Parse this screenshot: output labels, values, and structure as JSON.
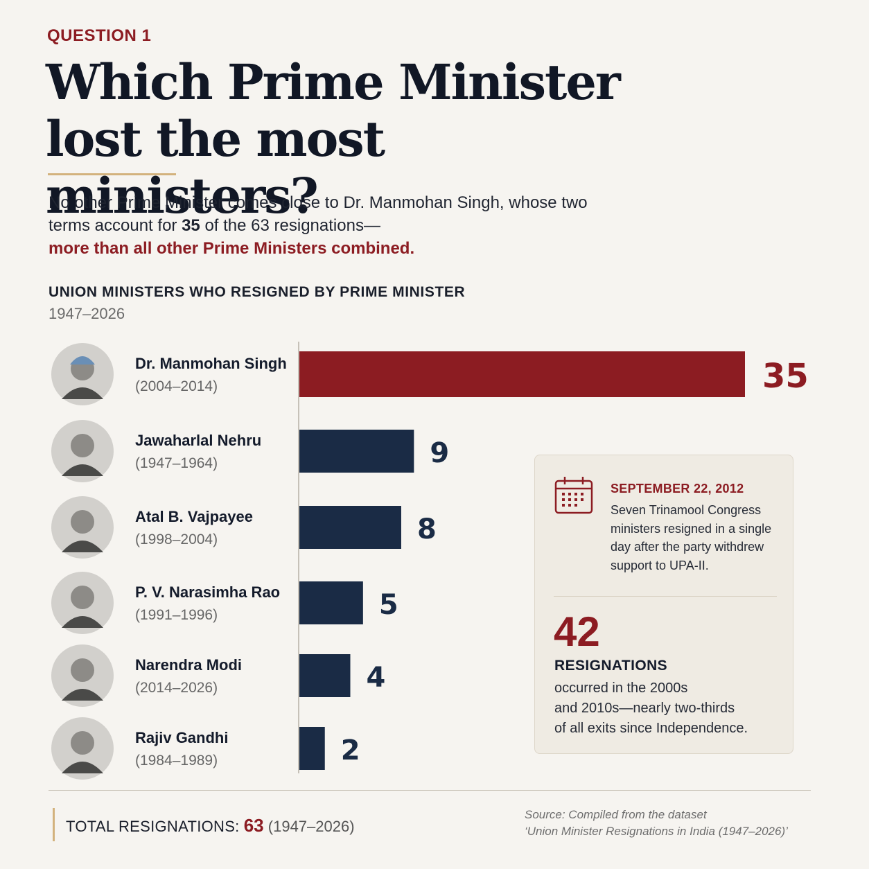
{
  "header": {
    "kicker": "QUESTION 1",
    "headline_line1": "Which Prime Minister",
    "headline_line2": "lost the most ministers?"
  },
  "intro": {
    "text1": "No other Prime Minister comes close to Dr. Manmohan Singh, whose two terms account for ",
    "highlight_number": "35",
    "text2": " of the 63 resignations—",
    "accent": "more than all other Prime Ministers combined."
  },
  "chart_data": {
    "type": "bar",
    "orientation": "horizontal",
    "title": "UNION MINISTERS WHO RESIGNED BY PRIME MINISTER",
    "subtitle": "1947–2026",
    "categories": [
      "Dr. Manmohan Singh",
      "Jawaharlal Nehru",
      "Atal B. Vajpayee",
      "P. V. Narasimha Rao",
      "Narendra Modi",
      "Rajiv Gandhi"
    ],
    "terms": [
      "(2004–2014)",
      "(1947–1964)",
      "(1998–2004)",
      "(1991–1996)",
      "(2014–2026)",
      "(1984–1989)"
    ],
    "values": [
      35,
      9,
      8,
      5,
      4,
      2
    ],
    "colors": {
      "highlight": "#8c1c22",
      "default": "#1a2b45"
    },
    "highlight_index": 0,
    "xlim": [
      0,
      35
    ],
    "grid": false,
    "legend": "none"
  },
  "callout": {
    "icon": "calendar-icon",
    "date": "SEPTEMBER 22, 2012",
    "text_lines": [
      "Seven Trinamool Congress",
      "ministers resigned in a single",
      "day after the party withdrew",
      "support to UPA-II."
    ],
    "big_number": "42",
    "label": "RESIGNATIONS",
    "body_lines": [
      "occurred in the 2000s",
      "and 2010s—nearly two-thirds",
      "of all exits since Independence."
    ]
  },
  "footer": {
    "total_label": "TOTAL RESIGNATIONS:",
    "total_value": "63",
    "total_years": "(1947–2026)",
    "source_line1": "Source: Compiled from the dataset",
    "source_line2": "‘Union Minister Resignations in India (1947–2026)’"
  }
}
